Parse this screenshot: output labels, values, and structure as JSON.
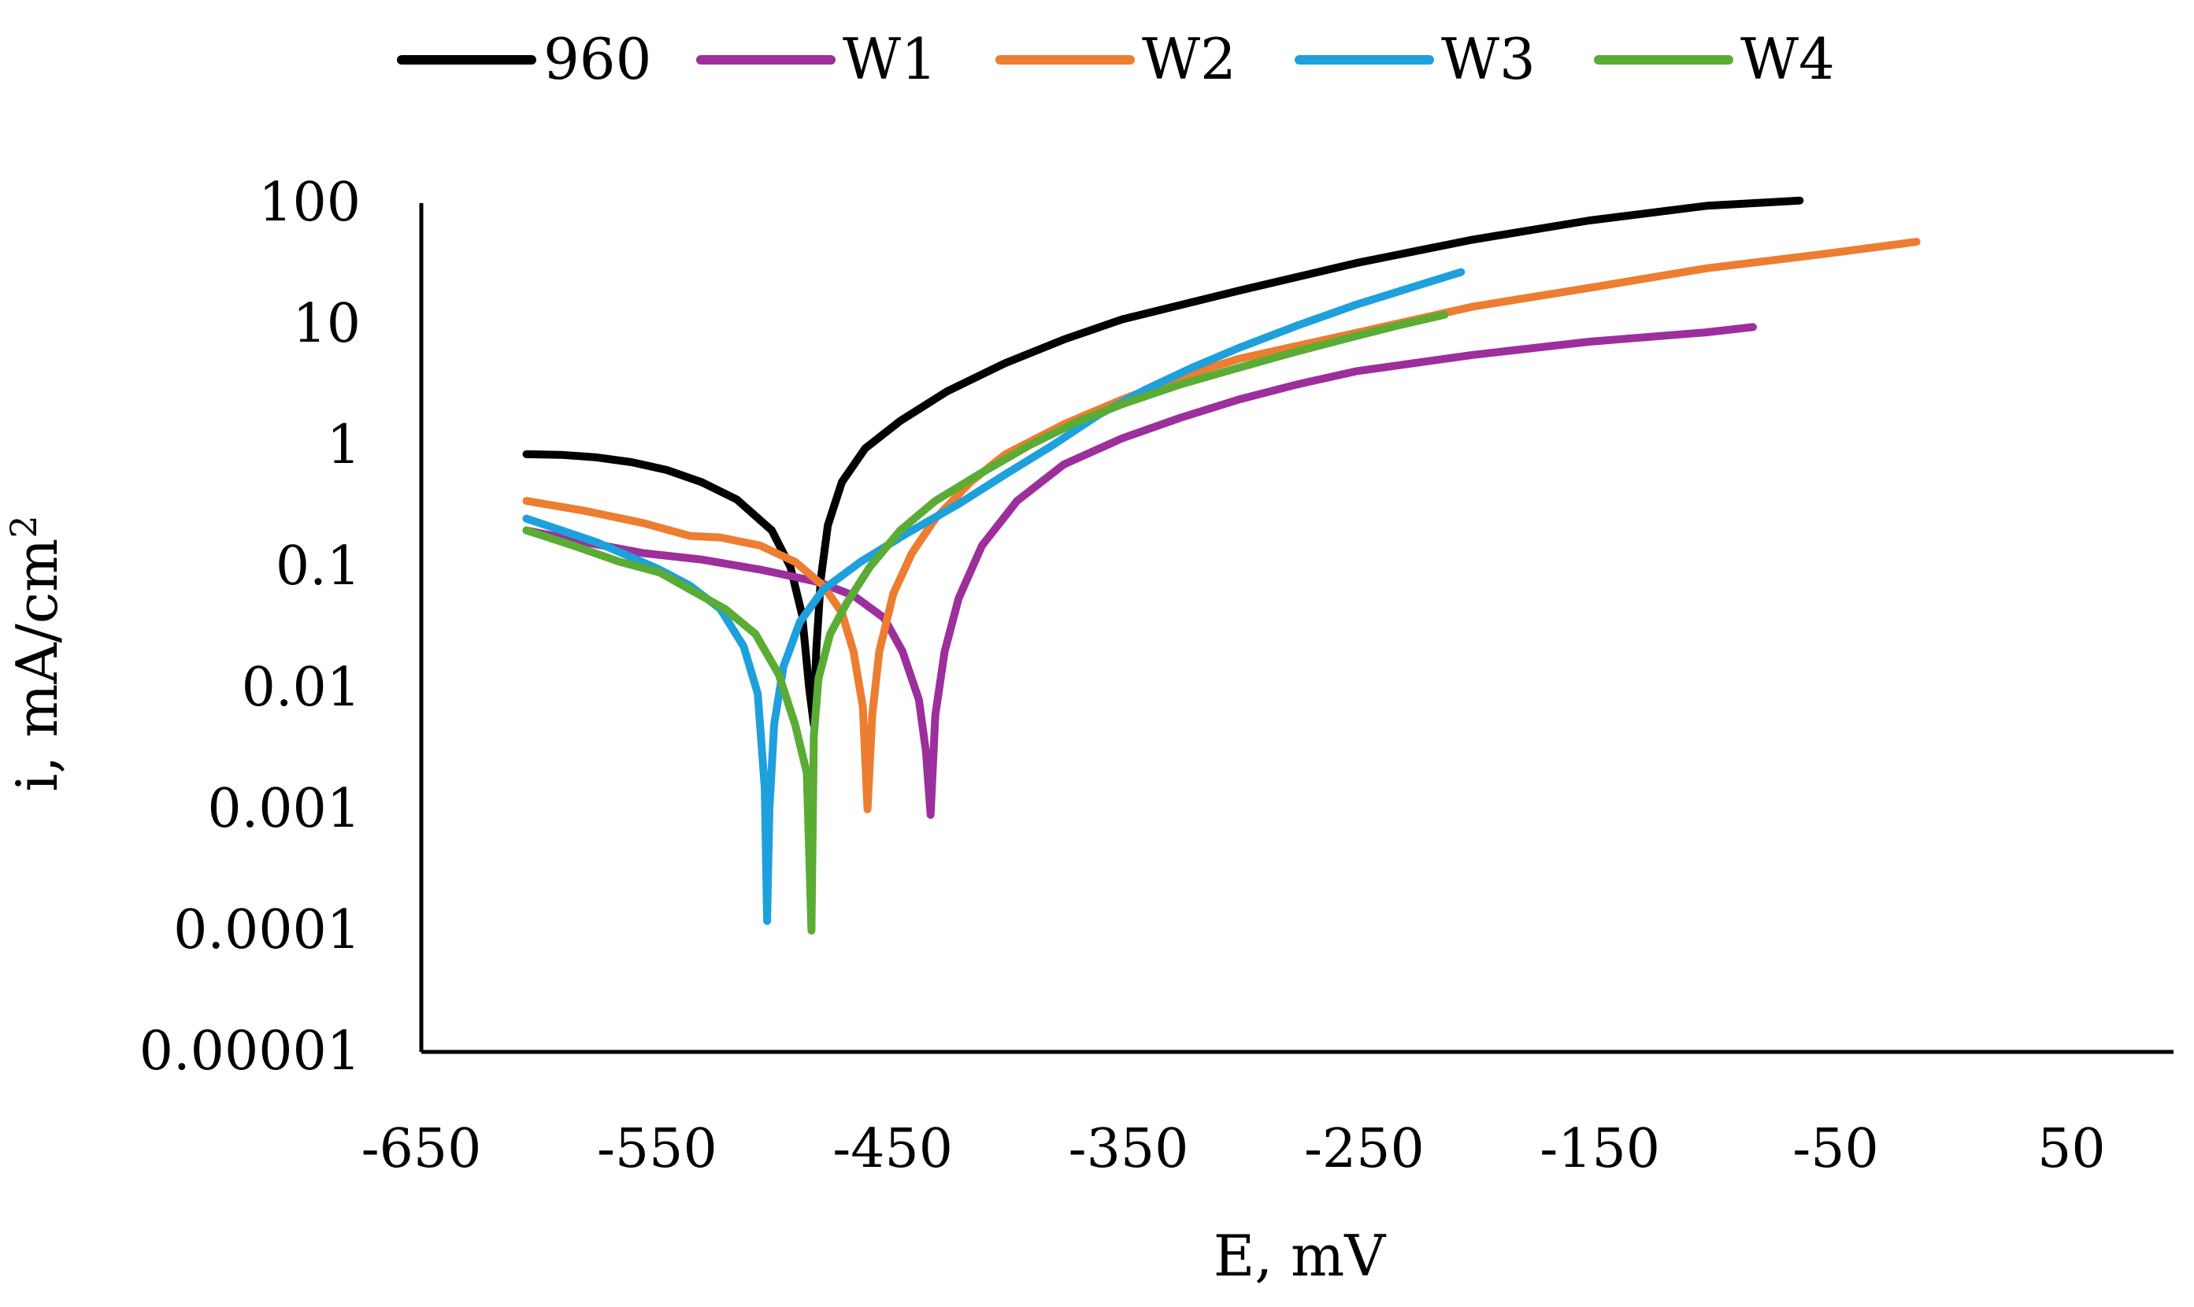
{
  "chart_data": {
    "type": "line",
    "title": "",
    "xlabel": "E, mV",
    "ylabel": "i, mA/cm",
    "ylabel_superscript": "2",
    "x_scale": "linear",
    "y_scale": "log",
    "xlim": [
      -650,
      100
    ],
    "ylim": [
      1e-05,
      100
    ],
    "x_ticks": [
      -650,
      -550,
      -450,
      -350,
      -250,
      -150,
      -50,
      50
    ],
    "x_tick_labels": [
      "-650",
      "-550",
      "-450",
      "-350",
      "-250",
      "-150",
      "-50",
      "50"
    ],
    "y_ticks": [
      1e-05,
      0.0001,
      0.001,
      0.01,
      0.1,
      1,
      10,
      100
    ],
    "y_tick_labels": [
      "0.00001",
      "0.0001",
      "0.001",
      "0.01",
      "0.1",
      "1",
      "10",
      "100"
    ],
    "grid": false,
    "legend_position": "top",
    "series": [
      {
        "name": "960",
        "color": "#000000",
        "points": [
          [
            -605,
            0.85
          ],
          [
            -590,
            0.84
          ],
          [
            -575,
            0.8
          ],
          [
            -560,
            0.73
          ],
          [
            -545,
            0.63
          ],
          [
            -530,
            0.5
          ],
          [
            -515,
            0.36
          ],
          [
            -500,
            0.2
          ],
          [
            -492,
            0.1
          ],
          [
            -487,
            0.04
          ],
          [
            -484,
            0.01
          ],
          [
            -482,
            0.005
          ],
          [
            -481,
            0.02
          ],
          [
            -479,
            0.08
          ],
          [
            -476,
            0.22
          ],
          [
            -470,
            0.5
          ],
          [
            -460,
            0.95
          ],
          [
            -445,
            1.6
          ],
          [
            -425,
            2.8
          ],
          [
            -400,
            4.8
          ],
          [
            -375,
            7.5
          ],
          [
            -350,
            11
          ],
          [
            -300,
            19
          ],
          [
            -250,
            32
          ],
          [
            -200,
            50
          ],
          [
            -150,
            72
          ],
          [
            -100,
            95
          ],
          [
            -60,
            105
          ]
        ]
      },
      {
        "name": "W1",
        "color": "#9c2f9c",
        "points": [
          [
            -605,
            0.2
          ],
          [
            -580,
            0.16
          ],
          [
            -555,
            0.13
          ],
          [
            -530,
            0.115
          ],
          [
            -505,
            0.095
          ],
          [
            -480,
            0.075
          ],
          [
            -465,
            0.058
          ],
          [
            -452,
            0.038
          ],
          [
            -444,
            0.02
          ],
          [
            -437,
            0.008
          ],
          [
            -434,
            0.003
          ],
          [
            -432,
            0.0009
          ],
          [
            -430,
            0.006
          ],
          [
            -426,
            0.02
          ],
          [
            -420,
            0.055
          ],
          [
            -410,
            0.15
          ],
          [
            -395,
            0.35
          ],
          [
            -375,
            0.7
          ],
          [
            -350,
            1.15
          ],
          [
            -325,
            1.7
          ],
          [
            -300,
            2.4
          ],
          [
            -275,
            3.2
          ],
          [
            -250,
            4.1
          ],
          [
            -200,
            5.6
          ],
          [
            -150,
            7.2
          ],
          [
            -100,
            8.6
          ],
          [
            -80,
            9.5
          ]
        ]
      },
      {
        "name": "W2",
        "color": "#ed7d31",
        "points": [
          [
            -605,
            0.35
          ],
          [
            -580,
            0.29
          ],
          [
            -555,
            0.23
          ],
          [
            -535,
            0.18
          ],
          [
            -522,
            0.175
          ],
          [
            -505,
            0.15
          ],
          [
            -490,
            0.11
          ],
          [
            -478,
            0.07
          ],
          [
            -470,
            0.042
          ],
          [
            -465,
            0.02
          ],
          [
            -461,
            0.007
          ],
          [
            -459,
            0.001
          ],
          [
            -457,
            0.006
          ],
          [
            -454,
            0.02
          ],
          [
            -448,
            0.06
          ],
          [
            -440,
            0.13
          ],
          [
            -430,
            0.25
          ],
          [
            -415,
            0.5
          ],
          [
            -400,
            0.85
          ],
          [
            -375,
            1.5
          ],
          [
            -350,
            2.4
          ],
          [
            -325,
            3.7
          ],
          [
            -300,
            5.2
          ],
          [
            -250,
            8.5
          ],
          [
            -200,
            14
          ],
          [
            -150,
            20
          ],
          [
            -100,
            29
          ],
          [
            -50,
            38
          ],
          [
            -10,
            48
          ]
        ]
      },
      {
        "name": "W3",
        "color": "#1ea0dd",
        "points": [
          [
            -605,
            0.25
          ],
          [
            -590,
            0.2
          ],
          [
            -575,
            0.16
          ],
          [
            -560,
            0.12
          ],
          [
            -548,
            0.095
          ],
          [
            -535,
            0.07
          ],
          [
            -522,
            0.045
          ],
          [
            -512,
            0.022
          ],
          [
            -506,
            0.009
          ],
          [
            -503,
            0.0015
          ],
          [
            -502,
            0.00012
          ],
          [
            -501,
            0.001
          ],
          [
            -499,
            0.005
          ],
          [
            -495,
            0.015
          ],
          [
            -488,
            0.035
          ],
          [
            -478,
            0.065
          ],
          [
            -462,
            0.11
          ],
          [
            -442,
            0.19
          ],
          [
            -420,
            0.33
          ],
          [
            -400,
            0.58
          ],
          [
            -380,
            1.0
          ],
          [
            -360,
            1.8
          ],
          [
            -340,
            2.9
          ],
          [
            -320,
            4.4
          ],
          [
            -300,
            6.4
          ],
          [
            -275,
            9.8
          ],
          [
            -250,
            14.5
          ],
          [
            -225,
            20.5
          ],
          [
            -205,
            27
          ]
        ]
      },
      {
        "name": "W4",
        "color": "#5aac35",
        "points": [
          [
            -605,
            0.2
          ],
          [
            -585,
            0.15
          ],
          [
            -565,
            0.11
          ],
          [
            -548,
            0.09
          ],
          [
            -535,
            0.065
          ],
          [
            -520,
            0.045
          ],
          [
            -507,
            0.028
          ],
          [
            -497,
            0.013
          ],
          [
            -490,
            0.005
          ],
          [
            -485,
            0.002
          ],
          [
            -483,
            0.0001
          ],
          [
            -482,
            0.004
          ],
          [
            -480,
            0.012
          ],
          [
            -475,
            0.028
          ],
          [
            -468,
            0.05
          ],
          [
            -458,
            0.1
          ],
          [
            -445,
            0.2
          ],
          [
            -430,
            0.35
          ],
          [
            -410,
            0.6
          ],
          [
            -390,
            1.0
          ],
          [
            -370,
            1.55
          ],
          [
            -350,
            2.2
          ],
          [
            -325,
            3.2
          ],
          [
            -300,
            4.4
          ],
          [
            -275,
            6.0
          ],
          [
            -250,
            8.0
          ],
          [
            -230,
            10
          ],
          [
            -212,
            12
          ]
        ]
      }
    ]
  }
}
